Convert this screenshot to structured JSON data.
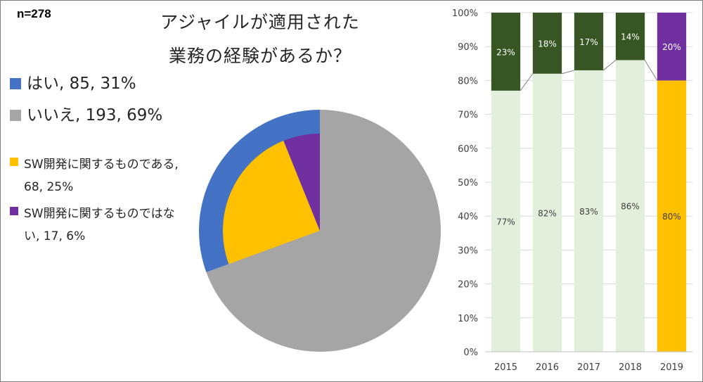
{
  "sample_size": "n=278",
  "title_line_1": "アジャイルが適用された",
  "title_line_2": "業務の経験があるか？",
  "legend": [
    {
      "label": "はい, 85, 31%",
      "color": "#4472c4"
    },
    {
      "label": "いいえ, 193, 69%",
      "color": "#a5a5a5"
    },
    {
      "label": "SW開発に関するものである, 68, 25%",
      "color": "#ffc000"
    },
    {
      "label": "SW開発に関するものではない, 17, 6%",
      "color": "#7030a0"
    }
  ],
  "chart_data": [
    {
      "type": "pie",
      "outer_ring": [
        {
          "label": "はい",
          "count": 85,
          "percent": 31,
          "color": "#4472c4"
        },
        {
          "label": "いいえ",
          "count": 193,
          "percent": 69,
          "color": "#a5a5a5"
        }
      ],
      "inner_breakdown_of_yes": [
        {
          "label": "SW開発に関するものである",
          "count": 68,
          "percent": 25,
          "color": "#ffc000"
        },
        {
          "label": "SW開発に関するものではない",
          "count": 17,
          "percent": 6,
          "color": "#7030a0"
        }
      ]
    },
    {
      "type": "bar",
      "stacked": true,
      "categories": [
        "2015",
        "2016",
        "2017",
        "2018",
        "2019"
      ],
      "ylim": [
        0,
        100
      ],
      "yticks": [
        "0%",
        "10%",
        "20%",
        "30%",
        "40%",
        "50%",
        "60%",
        "70%",
        "80%",
        "90%",
        "100%"
      ],
      "grid": true,
      "series": [
        {
          "values": [
            77,
            82,
            83,
            86,
            null
          ],
          "labels": [
            "77%",
            "82%",
            "83%",
            "86%",
            ""
          ],
          "color": "#e2efda"
        },
        {
          "values": [
            23,
            18,
            17,
            14,
            null
          ],
          "labels": [
            "23%",
            "18%",
            "17%",
            "14%",
            ""
          ],
          "color": "#375623"
        },
        {
          "values": [
            null,
            null,
            null,
            null,
            80
          ],
          "labels": [
            "",
            "",
            "",
            "",
            "80%"
          ],
          "color": "#ffc000"
        },
        {
          "values": [
            null,
            null,
            null,
            null,
            20
          ],
          "labels": [
            "",
            "",
            "",
            "",
            "20%"
          ],
          "color": "#7030a0"
        }
      ]
    }
  ]
}
